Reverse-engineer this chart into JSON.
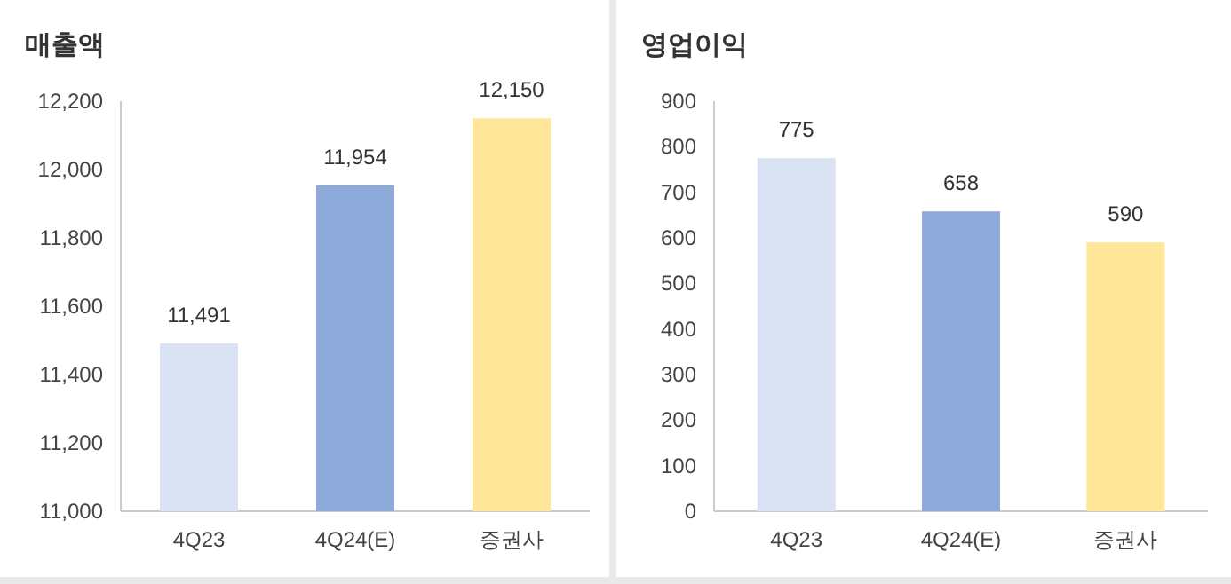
{
  "chart_data": [
    {
      "type": "bar",
      "title": "매출액",
      "categories": [
        "4Q23",
        "4Q24(E)",
        "증권사"
      ],
      "values": [
        11491,
        11954,
        12150
      ],
      "colors": [
        "#dae3f3",
        "#8eaadb",
        "#ffe699"
      ],
      "value_labels": [
        "11,491",
        "11,954",
        "12,150"
      ],
      "ylim": [
        11000,
        12200
      ],
      "yticks": [
        {
          "value": 11000,
          "label": "11,000"
        },
        {
          "value": 11200,
          "label": "11,200"
        },
        {
          "value": 11400,
          "label": "11,400"
        },
        {
          "value": 11600,
          "label": "11,600"
        },
        {
          "value": 11800,
          "label": "11,800"
        },
        {
          "value": 12000,
          "label": "12,000"
        },
        {
          "value": 12200,
          "label": "12,200"
        }
      ]
    },
    {
      "type": "bar",
      "title": "영업이익",
      "categories": [
        "4Q23",
        "4Q24(E)",
        "증권사"
      ],
      "values": [
        775,
        658,
        590
      ],
      "colors": [
        "#dae3f3",
        "#8eaadb",
        "#ffe699"
      ],
      "value_labels": [
        "775",
        "658",
        "590"
      ],
      "ylim": [
        0,
        900
      ],
      "yticks": [
        0,
        100,
        200,
        300,
        400,
        500,
        600,
        700,
        800,
        900
      ]
    }
  ]
}
